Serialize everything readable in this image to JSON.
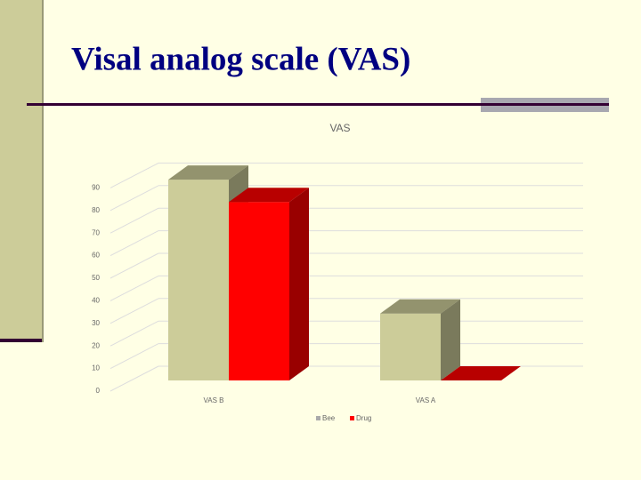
{
  "slide_title": "Visal analog scale (VAS)",
  "chart_data": {
    "type": "bar3d",
    "title": "VAS",
    "categories": [
      "VAS B",
      "VAS A"
    ],
    "series": [
      {
        "name": "Bee",
        "color": "#cccc99",
        "values": [
          90,
          30
        ]
      },
      {
        "name": "Drug",
        "color": "#ff0000",
        "values": [
          80,
          0
        ]
      }
    ],
    "ylim": [
      0,
      100
    ],
    "yticks": [
      0,
      10,
      20,
      30,
      40,
      50,
      60,
      70,
      80,
      90
    ],
    "grid": true,
    "legend": "bottom"
  }
}
